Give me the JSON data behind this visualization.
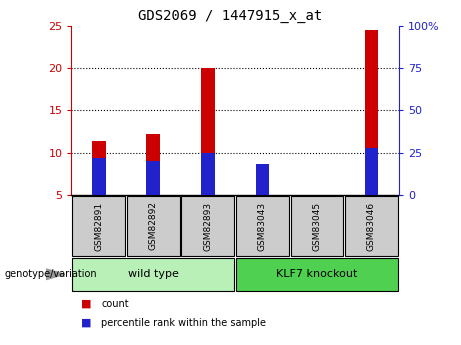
{
  "title": "GDS2069 / 1447915_x_at",
  "categories": [
    "GSM82891",
    "GSM82892",
    "GSM82893",
    "GSM83043",
    "GSM83045",
    "GSM83046"
  ],
  "red_values": [
    11.4,
    12.2,
    20.0,
    5.5,
    5.0,
    24.5
  ],
  "blue_values": [
    22.0,
    20.0,
    25.0,
    18.0,
    0.0,
    28.0
  ],
  "ylim_left": [
    5,
    25
  ],
  "ylim_right": [
    0,
    100
  ],
  "yticks_left": [
    5,
    10,
    15,
    20,
    25
  ],
  "yticks_right": [
    0,
    25,
    50,
    75,
    100
  ],
  "ytick_labels_right": [
    "0",
    "25",
    "50",
    "75",
    "100%"
  ],
  "legend_items": [
    "count",
    "percentile rank within the sample"
  ],
  "red_color": "#cc0000",
  "blue_color": "#2222cc",
  "axis_color_left": "#cc0000",
  "axis_color_right": "#2222cc",
  "title_fontsize": 10,
  "tick_fontsize": 8,
  "cat_label_fontsize": 6.5,
  "group_label_fontsize": 8,
  "legend_fontsize": 7,
  "genotype_fontsize": 7,
  "bar_width": 0.25,
  "group_data": [
    {
      "label": "wild type",
      "start": 0,
      "end": 2,
      "color": "#b8f0b8"
    },
    {
      "label": "KLF7 knockout",
      "start": 3,
      "end": 5,
      "color": "#50d050"
    }
  ],
  "arrow_color": "#999999",
  "label_bg_color": "#cccccc"
}
